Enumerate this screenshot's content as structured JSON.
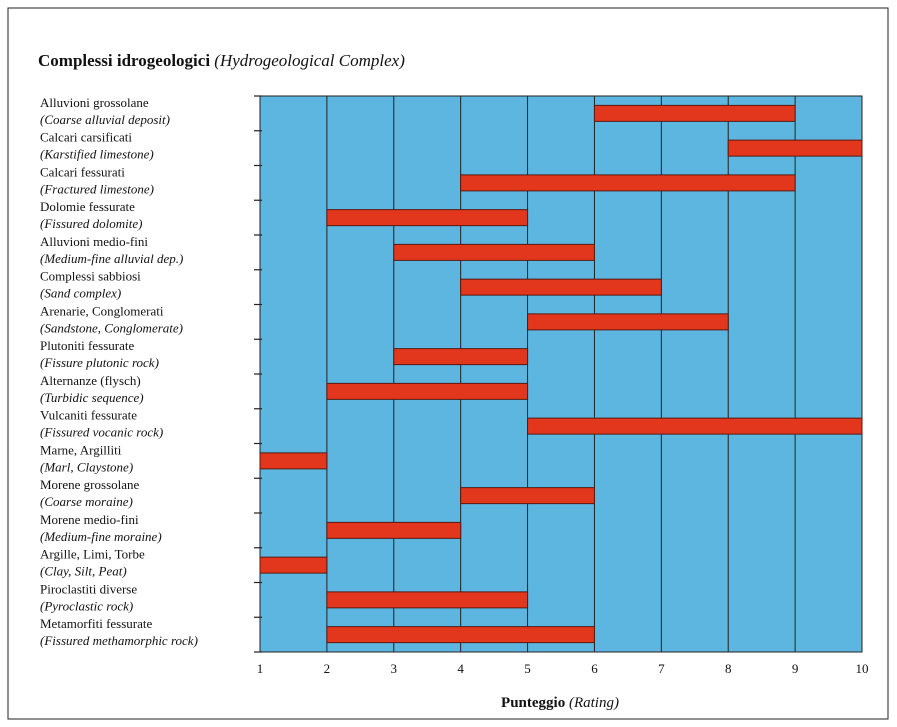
{
  "chart_data": {
    "type": "range-bar",
    "title": "Complessi idrogeologici",
    "title_translation": "(Hydrogeological Complex)",
    "x_label": "Punteggio",
    "x_label_translation": "(Rating)",
    "categories": [
      "Alluvioni grossolane",
      "Calcari carsificati",
      "Calcari fessurati",
      "Dolomie fessurate",
      "Alluvioni medio-fini",
      "Complessi sabbiosi",
      "Arenarie, Conglomerati",
      "Plutoniti fessurate",
      "Alternanze (flysch)",
      "Vulcaniti fessurate",
      "Marne, Argilliti",
      "Morene grossolane",
      "Morene medio-fini",
      "Argille, Limi, Torbe",
      "Piroclastiti diverse",
      "Metamorfiti fessurate"
    ],
    "category_translations": [
      "(Coarse alluvial deposit)",
      "(Karstified limestone)",
      "(Fractured limestone)",
      "(Fissured dolomite)",
      "(Medium-fine alluvial dep.)",
      "(Sand complex)",
      "(Sandstone, Conglomerate)",
      "(Fissure plutonic rock)",
      "(Turbidic sequence)",
      "(Fissured vocanic rock)",
      "(Marl, Claystone)",
      "(Coarse moraine)",
      "(Medium-fine moraine)",
      "(Clay, Silt, Peat)",
      "(Pyroclastic rock)",
      "(Fissured methamorphic rock)"
    ],
    "starts": [
      6,
      8,
      4,
      2,
      3,
      4,
      5,
      3,
      2,
      5,
      1,
      4,
      2,
      1,
      2,
      2
    ],
    "ends": [
      9,
      10,
      9,
      5,
      6,
      7,
      8,
      5,
      5,
      10,
      2,
      6,
      4,
      2,
      5,
      6
    ],
    "color": "#e2371c",
    "background_color": "#5cb6e0",
    "xlim": [
      1,
      10
    ],
    "xticks": [
      1,
      2,
      3,
      4,
      5,
      6,
      7,
      8,
      9,
      10
    ],
    "grid": true
  }
}
